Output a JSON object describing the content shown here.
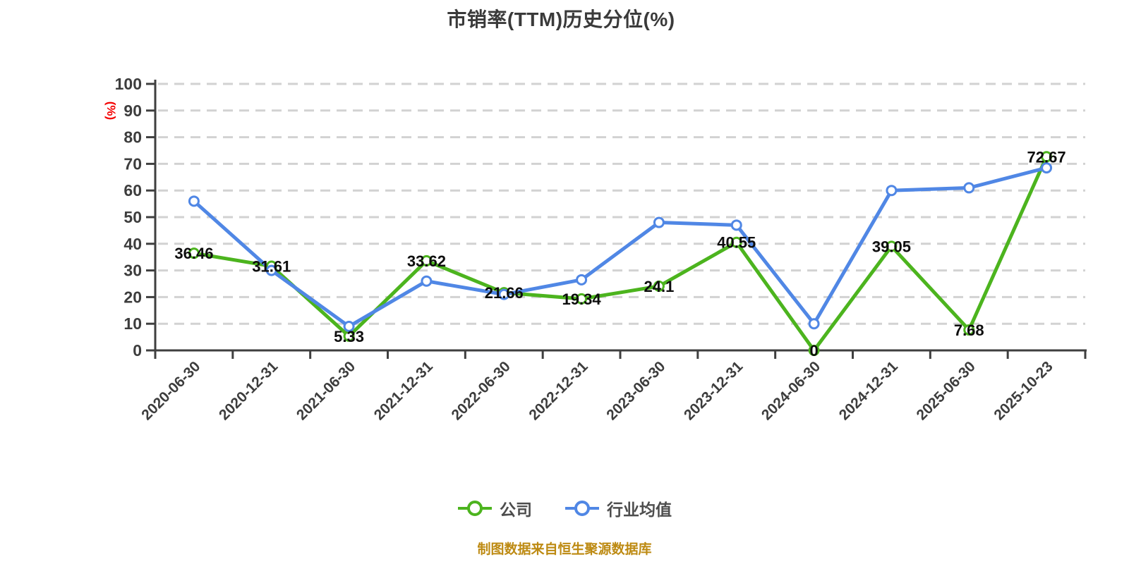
{
  "title": "市销率(TTM)历史分位(%)",
  "y_axis_unit_label": "(%)",
  "source_note": "制图数据来自恒生聚源数据库",
  "legend": [
    {
      "label": "公司",
      "color": "#4cb41e"
    },
    {
      "label": "行业均值",
      "color": "#5087e5"
    }
  ],
  "colors": {
    "company_series": "#4cb41e",
    "industry_series": "#5087e5",
    "axis": "#3f3f3f",
    "grid": "#d2d2d2",
    "data_label": "#0d0d0d",
    "y_unit_label": "#f40000",
    "source_text": "#bd8a12",
    "background": "#ffffff"
  },
  "chart_data": {
    "type": "line",
    "title": "市销率(TTM)历史分位(%)",
    "ylabel": "(%)",
    "xlabel": "",
    "ylim": [
      0,
      100
    ],
    "y_ticks": [
      0,
      10,
      20,
      30,
      40,
      50,
      60,
      70,
      80,
      90,
      100
    ],
    "grid": "horizontal-dashed",
    "legend_position": "bottom",
    "categories": [
      "2020-06-30",
      "2020-12-31",
      "2021-06-30",
      "2021-12-31",
      "2022-06-30",
      "2022-12-31",
      "2023-06-30",
      "2023-12-31",
      "2024-06-30",
      "2024-12-31",
      "2025-06-30",
      "2025-10-23"
    ],
    "series": [
      {
        "name": "公司",
        "color": "#4cb41e",
        "values": [
          36.46,
          31.61,
          5.33,
          33.62,
          21.66,
          19.34,
          24.1,
          40.55,
          0,
          39.05,
          7.68,
          72.67
        ],
        "labels": [
          "36.46",
          "31.61",
          "5.33",
          "33.62",
          "21.66",
          "19.34",
          "24.1",
          "40.55",
          "0",
          "39.05",
          "7.68",
          "72.67"
        ]
      },
      {
        "name": "行业均值",
        "color": "#5087e5",
        "values": [
          56,
          30,
          9,
          26,
          21,
          26.5,
          48,
          47,
          10,
          60,
          61,
          68.5
        ],
        "labels": null
      }
    ]
  }
}
